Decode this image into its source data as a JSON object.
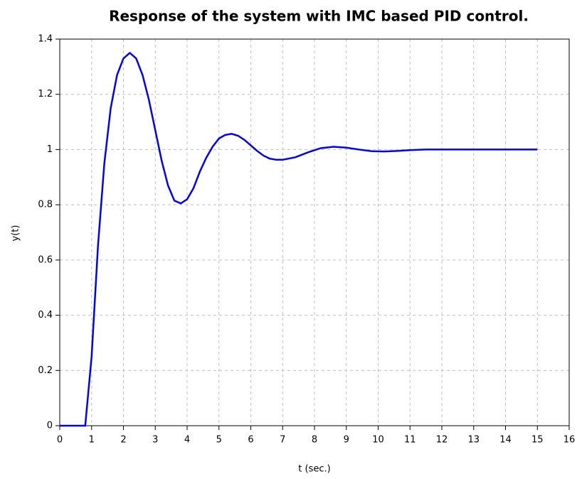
{
  "chart_data": {
    "type": "line",
    "title": "Response of the system with IMC based PID control.",
    "x_label": "t (sec.)",
    "y_label": "y(t)",
    "x": [
      0,
      0.8,
      1.0,
      1.2,
      1.4,
      1.6,
      1.8,
      2.0,
      2.2,
      2.4,
      2.6,
      2.8,
      3.0,
      3.2,
      3.4,
      3.6,
      3.8,
      4.0,
      4.2,
      4.4,
      4.6,
      4.8,
      5.0,
      5.2,
      5.4,
      5.6,
      5.8,
      6.0,
      6.2,
      6.4,
      6.6,
      6.8,
      7.0,
      7.4,
      7.8,
      8.2,
      8.6,
      9.0,
      9.4,
      9.8,
      10.2,
      10.6,
      11.0,
      11.5,
      12,
      13,
      14,
      15
    ],
    "series": [
      {
        "name": "y(t)",
        "color": "#0000ff",
        "values": [
          0,
          0,
          0.25,
          0.65,
          0.95,
          1.15,
          1.27,
          1.33,
          1.35,
          1.33,
          1.27,
          1.18,
          1.07,
          0.96,
          0.87,
          0.815,
          0.805,
          0.82,
          0.86,
          0.92,
          0.97,
          1.01,
          1.04,
          1.053,
          1.057,
          1.05,
          1.035,
          1.015,
          0.995,
          0.978,
          0.967,
          0.963,
          0.963,
          0.972,
          0.99,
          1.005,
          1.01,
          1.007,
          1.0,
          0.994,
          0.993,
          0.995,
          0.998,
          1.0,
          1,
          1,
          1,
          1
        ]
      }
    ],
    "xlim": [
      0,
      16
    ],
    "xticks": [
      0,
      1,
      2,
      3,
      4,
      5,
      6,
      7,
      8,
      9,
      10,
      11,
      12,
      13,
      14,
      15,
      16
    ],
    "ylim": [
      0,
      1.4
    ],
    "yticks": [
      0,
      0.2,
      0.4,
      0.6,
      0.8,
      1,
      1.2,
      1.4
    ],
    "grid": true
  }
}
